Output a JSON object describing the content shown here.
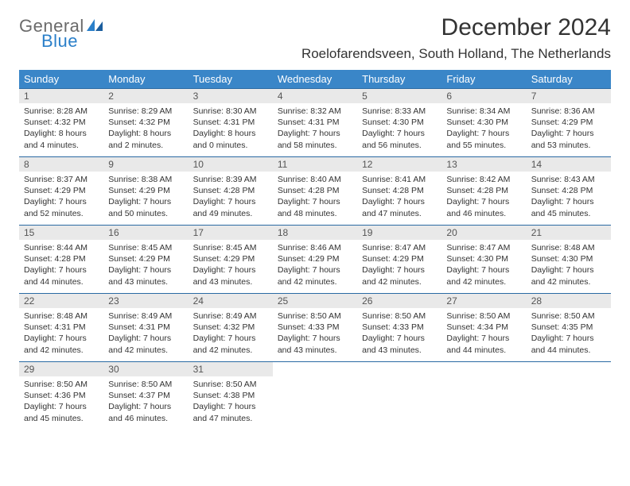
{
  "brand": {
    "text1": "General",
    "text2": "Blue"
  },
  "title": "December 2024",
  "location": "Roelofarendsveen, South Holland, The Netherlands",
  "colors": {
    "header_bg": "#3a86c8",
    "header_text": "#ffffff",
    "daynum_bg": "#e9e9e9",
    "row_border": "#2a6aa3",
    "logo_gray": "#6b6b6b",
    "logo_blue": "#2a7fc9"
  },
  "weekdays": [
    "Sunday",
    "Monday",
    "Tuesday",
    "Wednesday",
    "Thursday",
    "Friday",
    "Saturday"
  ],
  "days": [
    {
      "n": "1",
      "sr": "8:28 AM",
      "ss": "4:32 PM",
      "dl": "8 hours and 4 minutes."
    },
    {
      "n": "2",
      "sr": "8:29 AM",
      "ss": "4:32 PM",
      "dl": "8 hours and 2 minutes."
    },
    {
      "n": "3",
      "sr": "8:30 AM",
      "ss": "4:31 PM",
      "dl": "8 hours and 0 minutes."
    },
    {
      "n": "4",
      "sr": "8:32 AM",
      "ss": "4:31 PM",
      "dl": "7 hours and 58 minutes."
    },
    {
      "n": "5",
      "sr": "8:33 AM",
      "ss": "4:30 PM",
      "dl": "7 hours and 56 minutes."
    },
    {
      "n": "6",
      "sr": "8:34 AM",
      "ss": "4:30 PM",
      "dl": "7 hours and 55 minutes."
    },
    {
      "n": "7",
      "sr": "8:36 AM",
      "ss": "4:29 PM",
      "dl": "7 hours and 53 minutes."
    },
    {
      "n": "8",
      "sr": "8:37 AM",
      "ss": "4:29 PM",
      "dl": "7 hours and 52 minutes."
    },
    {
      "n": "9",
      "sr": "8:38 AM",
      "ss": "4:29 PM",
      "dl": "7 hours and 50 minutes."
    },
    {
      "n": "10",
      "sr": "8:39 AM",
      "ss": "4:28 PM",
      "dl": "7 hours and 49 minutes."
    },
    {
      "n": "11",
      "sr": "8:40 AM",
      "ss": "4:28 PM",
      "dl": "7 hours and 48 minutes."
    },
    {
      "n": "12",
      "sr": "8:41 AM",
      "ss": "4:28 PM",
      "dl": "7 hours and 47 minutes."
    },
    {
      "n": "13",
      "sr": "8:42 AM",
      "ss": "4:28 PM",
      "dl": "7 hours and 46 minutes."
    },
    {
      "n": "14",
      "sr": "8:43 AM",
      "ss": "4:28 PM",
      "dl": "7 hours and 45 minutes."
    },
    {
      "n": "15",
      "sr": "8:44 AM",
      "ss": "4:28 PM",
      "dl": "7 hours and 44 minutes."
    },
    {
      "n": "16",
      "sr": "8:45 AM",
      "ss": "4:29 PM",
      "dl": "7 hours and 43 minutes."
    },
    {
      "n": "17",
      "sr": "8:45 AM",
      "ss": "4:29 PM",
      "dl": "7 hours and 43 minutes."
    },
    {
      "n": "18",
      "sr": "8:46 AM",
      "ss": "4:29 PM",
      "dl": "7 hours and 42 minutes."
    },
    {
      "n": "19",
      "sr": "8:47 AM",
      "ss": "4:29 PM",
      "dl": "7 hours and 42 minutes."
    },
    {
      "n": "20",
      "sr": "8:47 AM",
      "ss": "4:30 PM",
      "dl": "7 hours and 42 minutes."
    },
    {
      "n": "21",
      "sr": "8:48 AM",
      "ss": "4:30 PM",
      "dl": "7 hours and 42 minutes."
    },
    {
      "n": "22",
      "sr": "8:48 AM",
      "ss": "4:31 PM",
      "dl": "7 hours and 42 minutes."
    },
    {
      "n": "23",
      "sr": "8:49 AM",
      "ss": "4:31 PM",
      "dl": "7 hours and 42 minutes."
    },
    {
      "n": "24",
      "sr": "8:49 AM",
      "ss": "4:32 PM",
      "dl": "7 hours and 42 minutes."
    },
    {
      "n": "25",
      "sr": "8:50 AM",
      "ss": "4:33 PM",
      "dl": "7 hours and 43 minutes."
    },
    {
      "n": "26",
      "sr": "8:50 AM",
      "ss": "4:33 PM",
      "dl": "7 hours and 43 minutes."
    },
    {
      "n": "27",
      "sr": "8:50 AM",
      "ss": "4:34 PM",
      "dl": "7 hours and 44 minutes."
    },
    {
      "n": "28",
      "sr": "8:50 AM",
      "ss": "4:35 PM",
      "dl": "7 hours and 44 minutes."
    },
    {
      "n": "29",
      "sr": "8:50 AM",
      "ss": "4:36 PM",
      "dl": "7 hours and 45 minutes."
    },
    {
      "n": "30",
      "sr": "8:50 AM",
      "ss": "4:37 PM",
      "dl": "7 hours and 46 minutes."
    },
    {
      "n": "31",
      "sr": "8:50 AM",
      "ss": "4:38 PM",
      "dl": "7 hours and 47 minutes."
    }
  ],
  "labels": {
    "sunrise": "Sunrise: ",
    "sunset": "Sunset: ",
    "daylight": "Daylight: "
  }
}
